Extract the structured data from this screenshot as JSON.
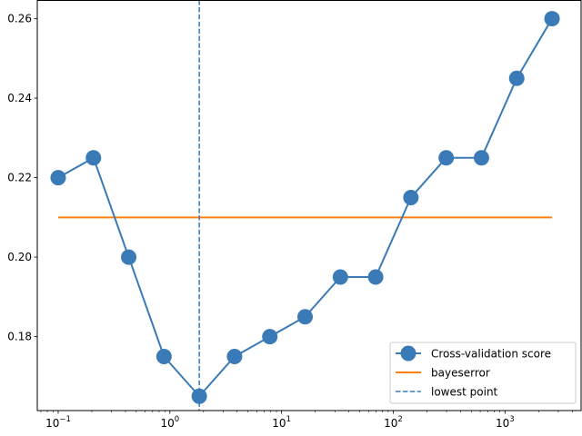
{
  "chart_data": {
    "type": "line",
    "title": "",
    "xlabel": "",
    "ylabel": "",
    "xscale": "log",
    "xlim": [
      0.065,
      4800
    ],
    "ylim": [
      0.1614,
      0.2647
    ],
    "grid": false,
    "legend_position": "lower-right",
    "x_ticks": [
      {
        "value": 0.1,
        "base": "10",
        "exp": "−1"
      },
      {
        "value": 1,
        "base": "10",
        "exp": "0"
      },
      {
        "value": 10,
        "base": "10",
        "exp": "1"
      },
      {
        "value": 100,
        "base": "10",
        "exp": "2"
      },
      {
        "value": 1000,
        "base": "10",
        "exp": "3"
      }
    ],
    "y_ticks": [
      {
        "value": 0.18,
        "label": "0.18"
      },
      {
        "value": 0.2,
        "label": "0.20"
      },
      {
        "value": 0.22,
        "label": "0.22"
      },
      {
        "value": 0.24,
        "label": "0.24"
      },
      {
        "value": 0.26,
        "label": "0.26"
      }
    ],
    "series": [
      {
        "name": "Cross-validation score",
        "style": "line-marker",
        "color": "#3a7ab6",
        "x": [
          0.1,
          0.2069,
          0.4281,
          0.8859,
          1.833,
          3.793,
          7.848,
          16.24,
          33.6,
          69.52,
          143.8,
          297.6,
          615.8,
          1274,
          2637
        ],
        "y": [
          0.22,
          0.225,
          0.2,
          0.175,
          0.165,
          0.175,
          0.18,
          0.185,
          0.195,
          0.195,
          0.215,
          0.225,
          0.225,
          0.245,
          0.26
        ]
      },
      {
        "name": "bayeserror",
        "style": "hline",
        "color": "#ff7f0e",
        "x": [
          0.1,
          2637
        ],
        "y": [
          0.21,
          0.21
        ]
      },
      {
        "name": "lowest point",
        "style": "vline-dashed",
        "color": "#3a7ab6",
        "x": [
          1.833
        ]
      }
    ]
  }
}
